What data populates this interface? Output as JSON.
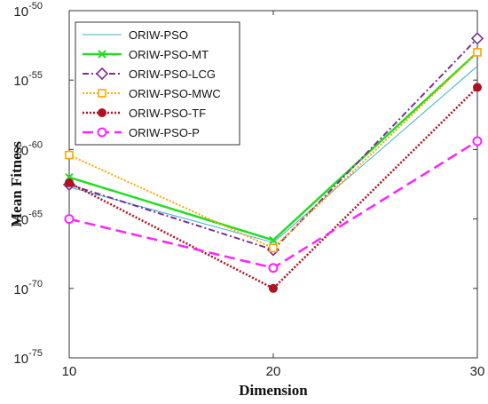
{
  "chart_data": {
    "type": "line",
    "xlabel": "Dimension",
    "ylabel": "Mean Fitness",
    "x": [
      10,
      20,
      30
    ],
    "xlim": [
      10,
      30
    ],
    "yscale": "log",
    "ylim": [
      1e-75,
      1e-50
    ],
    "xticks": [
      "10",
      "20",
      "30"
    ],
    "yticks": [
      {
        "base": "10",
        "exp": "-50",
        "value": 1e-50
      },
      {
        "base": "10",
        "exp": "-55",
        "value": 1e-55
      },
      {
        "base": "10",
        "exp": "-60",
        "value": 1e-60
      },
      {
        "base": "10",
        "exp": "-65",
        "value": 1e-65
      },
      {
        "base": "10",
        "exp": "-70",
        "value": 1e-70
      },
      {
        "base": "10",
        "exp": "-75",
        "value": 1e-75
      }
    ],
    "grid": false,
    "legend_position": "top-left",
    "series": [
      {
        "name": "ORIW-PSO",
        "values": [
          2e-63,
          2e-67,
          1e-54
        ],
        "color": "#3aaed8",
        "dash": "",
        "width": 1,
        "marker": "none"
      },
      {
        "name": "ORIW-PSO-MT",
        "values": [
          1e-62,
          3e-67,
          1e-53
        ],
        "color": "#22dd22",
        "dash": "",
        "width": 2.5,
        "marker": "x"
      },
      {
        "name": "ORIW-PSO-LCG",
        "values": [
          3e-63,
          6e-68,
          1e-52
        ],
        "color": "#7e2f8e",
        "dash": "7 3 2 3",
        "width": 2,
        "marker": "diamond"
      },
      {
        "name": "ORIW-PSO-MWC",
        "values": [
          4e-61,
          8e-68,
          1e-53
        ],
        "color": "#ffa500",
        "dash": "2 2",
        "width": 2,
        "marker": "square"
      },
      {
        "name": "ORIW-PSO-TF",
        "values": [
          4e-63,
          1e-70,
          3e-56
        ],
        "color": "#b01020",
        "dash": "2 2",
        "width": 2.5,
        "marker": "circle-filled"
      },
      {
        "name": "ORIW-PSO-P",
        "values": [
          1e-65,
          3e-69,
          4e-60
        ],
        "color": "#ff22ff",
        "dash": "12 6",
        "width": 2.5,
        "marker": "circle-open"
      }
    ]
  }
}
